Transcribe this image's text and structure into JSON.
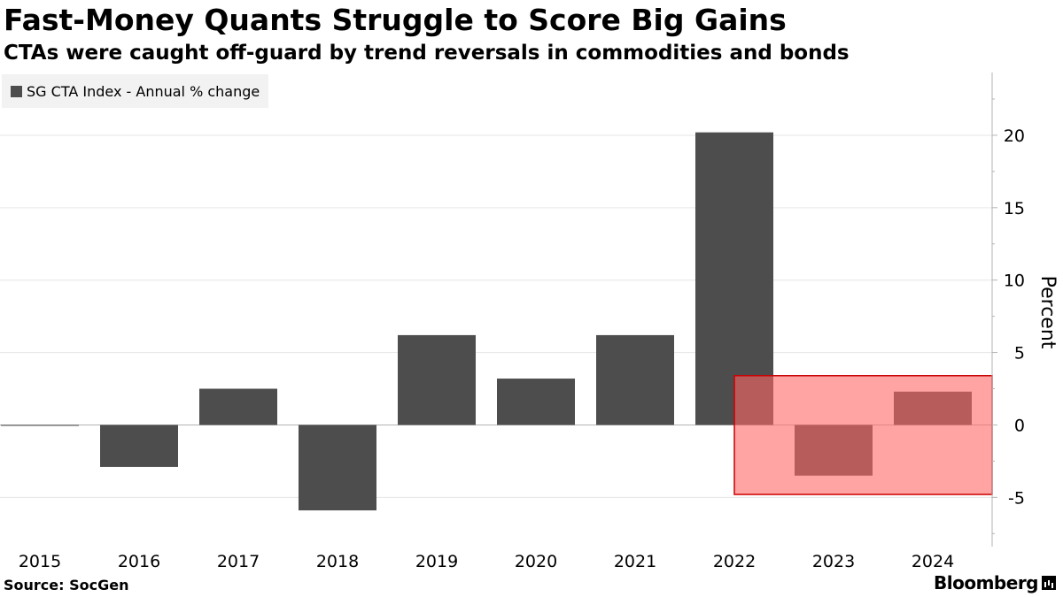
{
  "title": "Fast-Money Quants Struggle to Score Big Gains",
  "subtitle": "CTAs were caught off-guard by trend reversals in commodities and bonds",
  "legend": {
    "label": "SG CTA Index - Annual % change",
    "color": "#4d4d4d"
  },
  "source": "Source: SocGen",
  "brand": "Bloomberg",
  "colors": {
    "bar": "#4d4d4d",
    "highlight_fill": "#ff6666",
    "highlight_stroke": "#cc0000",
    "grid": "#e6e6e6",
    "axis": "#b3b3b3"
  },
  "chart_data": {
    "type": "bar",
    "categories": [
      "2015",
      "2016",
      "2017",
      "2018",
      "2019",
      "2020",
      "2021",
      "2022",
      "2023",
      "2024"
    ],
    "series": [
      {
        "name": "SG CTA Index - Annual % change",
        "values": [
          0.0,
          -2.9,
          2.5,
          -5.9,
          6.2,
          3.2,
          6.2,
          20.2,
          -3.5,
          2.3
        ]
      }
    ],
    "ylabel": "Percent",
    "ylim": [
      -8.4,
      22.5
    ],
    "yticks": [
      -5,
      0,
      5,
      10,
      15,
      20
    ],
    "y_axis_side": "right",
    "grid": true,
    "legend_position": "top-left",
    "highlight": {
      "from_category": "2022",
      "to_category": "2024",
      "y_range": [
        -4.8,
        3.4
      ]
    }
  }
}
